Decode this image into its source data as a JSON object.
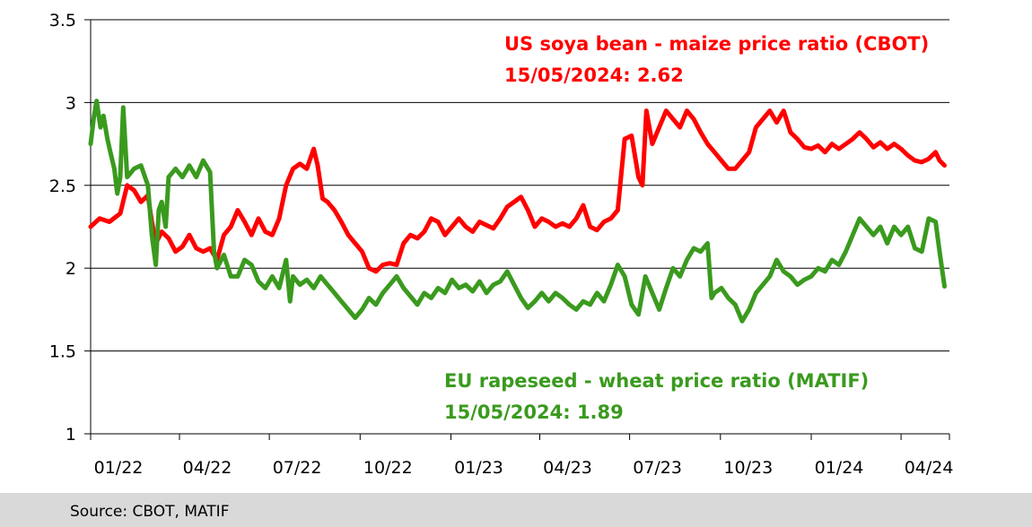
{
  "chart_data": {
    "type": "line",
    "title": "",
    "xlabel": "",
    "ylabel": "",
    "ylim": [
      1,
      3.5
    ],
    "y_ticks": [
      "1",
      "1.5",
      "2",
      "2.5",
      "3",
      "3.5"
    ],
    "x_range": [
      "2022-01-01",
      "2024-05-20"
    ],
    "x_tick_labels": [
      {
        "date": "2022-01-01",
        "label": "01/22"
      },
      {
        "date": "2022-04-01",
        "label": "04/22"
      },
      {
        "date": "2022-07-01",
        "label": "07/22"
      },
      {
        "date": "2022-10-01",
        "label": "10/22"
      },
      {
        "date": "2023-01-01",
        "label": "01/23"
      },
      {
        "date": "2023-04-01",
        "label": "04/23"
      },
      {
        "date": "2023-07-01",
        "label": "07/23"
      },
      {
        "date": "2023-10-01",
        "label": "10/23"
      },
      {
        "date": "2024-01-01",
        "label": "01/24"
      },
      {
        "date": "2024-04-01",
        "label": "04/24"
      }
    ],
    "grid": "horizontal",
    "annotations": [
      {
        "series": "US soya bean - maize price ratio (CBOT)",
        "line1": "US soya bean - maize price ratio (CBOT)",
        "line2": "15/05/2024: 2.62"
      },
      {
        "series": "EU rapeseed - wheat price ratio (MATIF)",
        "line1": "EU rapeseed - wheat price ratio (MATIF)",
        "line2": "15/05/2024: 1.89"
      }
    ],
    "series": [
      {
        "name": "US soya bean - maize price ratio (CBOT)",
        "color": "#ff0000",
        "points": [
          [
            "2022-01-01",
            2.25
          ],
          [
            "2022-01-10",
            2.3
          ],
          [
            "2022-01-20",
            2.28
          ],
          [
            "2022-01-31",
            2.33
          ],
          [
            "2022-02-07",
            2.5
          ],
          [
            "2022-02-14",
            2.47
          ],
          [
            "2022-02-21",
            2.4
          ],
          [
            "2022-02-28",
            2.44
          ],
          [
            "2022-03-04",
            2.28
          ],
          [
            "2022-03-08",
            2.15
          ],
          [
            "2022-03-14",
            2.22
          ],
          [
            "2022-03-21",
            2.18
          ],
          [
            "2022-03-28",
            2.1
          ],
          [
            "2022-04-04",
            2.13
          ],
          [
            "2022-04-11",
            2.2
          ],
          [
            "2022-04-18",
            2.12
          ],
          [
            "2022-04-25",
            2.1
          ],
          [
            "2022-05-02",
            2.12
          ],
          [
            "2022-05-09",
            2.05
          ],
          [
            "2022-05-16",
            2.2
          ],
          [
            "2022-05-23",
            2.25
          ],
          [
            "2022-05-30",
            2.35
          ],
          [
            "2022-06-06",
            2.28
          ],
          [
            "2022-06-13",
            2.2
          ],
          [
            "2022-06-20",
            2.3
          ],
          [
            "2022-06-27",
            2.22
          ],
          [
            "2022-07-04",
            2.2
          ],
          [
            "2022-07-11",
            2.3
          ],
          [
            "2022-07-18",
            2.5
          ],
          [
            "2022-07-25",
            2.6
          ],
          [
            "2022-08-01",
            2.63
          ],
          [
            "2022-08-08",
            2.6
          ],
          [
            "2022-08-15",
            2.72
          ],
          [
            "2022-08-19",
            2.62
          ],
          [
            "2022-08-24",
            2.42
          ],
          [
            "2022-08-29",
            2.4
          ],
          [
            "2022-09-05",
            2.35
          ],
          [
            "2022-09-12",
            2.28
          ],
          [
            "2022-09-19",
            2.2
          ],
          [
            "2022-09-26",
            2.15
          ],
          [
            "2022-10-03",
            2.1
          ],
          [
            "2022-10-10",
            2.0
          ],
          [
            "2022-10-17",
            1.98
          ],
          [
            "2022-10-24",
            2.02
          ],
          [
            "2022-10-31",
            2.03
          ],
          [
            "2022-11-07",
            2.02
          ],
          [
            "2022-11-14",
            2.15
          ],
          [
            "2022-11-21",
            2.2
          ],
          [
            "2022-11-28",
            2.18
          ],
          [
            "2022-12-05",
            2.22
          ],
          [
            "2022-12-12",
            2.3
          ],
          [
            "2022-12-19",
            2.28
          ],
          [
            "2022-12-26",
            2.2
          ],
          [
            "2023-01-02",
            2.25
          ],
          [
            "2023-01-09",
            2.3
          ],
          [
            "2023-01-16",
            2.25
          ],
          [
            "2023-01-23",
            2.22
          ],
          [
            "2023-01-30",
            2.28
          ],
          [
            "2023-02-06",
            2.26
          ],
          [
            "2023-02-13",
            2.24
          ],
          [
            "2023-02-20",
            2.3
          ],
          [
            "2023-02-27",
            2.37
          ],
          [
            "2023-03-06",
            2.4
          ],
          [
            "2023-03-13",
            2.43
          ],
          [
            "2023-03-20",
            2.35
          ],
          [
            "2023-03-27",
            2.25
          ],
          [
            "2023-04-03",
            2.3
          ],
          [
            "2023-04-10",
            2.28
          ],
          [
            "2023-04-17",
            2.25
          ],
          [
            "2023-04-24",
            2.27
          ],
          [
            "2023-05-01",
            2.25
          ],
          [
            "2023-05-08",
            2.3
          ],
          [
            "2023-05-15",
            2.38
          ],
          [
            "2023-05-22",
            2.25
          ],
          [
            "2023-05-29",
            2.23
          ],
          [
            "2023-06-05",
            2.28
          ],
          [
            "2023-06-12",
            2.3
          ],
          [
            "2023-06-19",
            2.35
          ],
          [
            "2023-06-26",
            2.78
          ],
          [
            "2023-07-03",
            2.8
          ],
          [
            "2023-07-10",
            2.55
          ],
          [
            "2023-07-14",
            2.5
          ],
          [
            "2023-07-18",
            2.95
          ],
          [
            "2023-07-24",
            2.75
          ],
          [
            "2023-07-31",
            2.85
          ],
          [
            "2023-08-07",
            2.95
          ],
          [
            "2023-08-14",
            2.9
          ],
          [
            "2023-08-21",
            2.85
          ],
          [
            "2023-08-28",
            2.95
          ],
          [
            "2023-09-04",
            2.9
          ],
          [
            "2023-09-11",
            2.82
          ],
          [
            "2023-09-18",
            2.75
          ],
          [
            "2023-09-25",
            2.7
          ],
          [
            "2023-10-02",
            2.65
          ],
          [
            "2023-10-09",
            2.6
          ],
          [
            "2023-10-16",
            2.6
          ],
          [
            "2023-10-23",
            2.65
          ],
          [
            "2023-10-30",
            2.7
          ],
          [
            "2023-11-06",
            2.85
          ],
          [
            "2023-11-13",
            2.9
          ],
          [
            "2023-11-20",
            2.95
          ],
          [
            "2023-11-27",
            2.88
          ],
          [
            "2023-12-04",
            2.95
          ],
          [
            "2023-12-11",
            2.82
          ],
          [
            "2023-12-18",
            2.78
          ],
          [
            "2023-12-25",
            2.73
          ],
          [
            "2024-01-01",
            2.72
          ],
          [
            "2024-01-08",
            2.74
          ],
          [
            "2024-01-15",
            2.7
          ],
          [
            "2024-01-22",
            2.75
          ],
          [
            "2024-01-29",
            2.72
          ],
          [
            "2024-02-05",
            2.75
          ],
          [
            "2024-02-12",
            2.78
          ],
          [
            "2024-02-19",
            2.82
          ],
          [
            "2024-02-26",
            2.78
          ],
          [
            "2024-03-04",
            2.73
          ],
          [
            "2024-03-11",
            2.76
          ],
          [
            "2024-03-18",
            2.72
          ],
          [
            "2024-03-25",
            2.75
          ],
          [
            "2024-04-01",
            2.72
          ],
          [
            "2024-04-08",
            2.68
          ],
          [
            "2024-04-15",
            2.65
          ],
          [
            "2024-04-22",
            2.64
          ],
          [
            "2024-04-29",
            2.66
          ],
          [
            "2024-05-06",
            2.7
          ],
          [
            "2024-05-10",
            2.65
          ],
          [
            "2024-05-15",
            2.62
          ]
        ]
      },
      {
        "name": "EU rapeseed - wheat price ratio (MATIF)",
        "color": "#3a9a1e",
        "points": [
          [
            "2022-01-01",
            2.75
          ],
          [
            "2022-01-04",
            2.9
          ],
          [
            "2022-01-07",
            3.01
          ],
          [
            "2022-01-11",
            2.85
          ],
          [
            "2022-01-14",
            2.92
          ],
          [
            "2022-01-18",
            2.78
          ],
          [
            "2022-01-21",
            2.7
          ],
          [
            "2022-01-25",
            2.6
          ],
          [
            "2022-01-28",
            2.45
          ],
          [
            "2022-01-31",
            2.55
          ],
          [
            "2022-02-03",
            2.97
          ],
          [
            "2022-02-07",
            2.55
          ],
          [
            "2022-02-14",
            2.6
          ],
          [
            "2022-02-21",
            2.62
          ],
          [
            "2022-02-28",
            2.5
          ],
          [
            "2022-03-04",
            2.2
          ],
          [
            "2022-03-08",
            2.02
          ],
          [
            "2022-03-11",
            2.35
          ],
          [
            "2022-03-14",
            2.4
          ],
          [
            "2022-03-18",
            2.25
          ],
          [
            "2022-03-21",
            2.55
          ],
          [
            "2022-03-28",
            2.6
          ],
          [
            "2022-04-04",
            2.55
          ],
          [
            "2022-04-11",
            2.62
          ],
          [
            "2022-04-18",
            2.55
          ],
          [
            "2022-04-25",
            2.65
          ],
          [
            "2022-05-02",
            2.58
          ],
          [
            "2022-05-06",
            2.1
          ],
          [
            "2022-05-09",
            2.0
          ],
          [
            "2022-05-16",
            2.08
          ],
          [
            "2022-05-23",
            1.95
          ],
          [
            "2022-05-30",
            1.95
          ],
          [
            "2022-06-06",
            2.05
          ],
          [
            "2022-06-13",
            2.02
          ],
          [
            "2022-06-20",
            1.92
          ],
          [
            "2022-06-27",
            1.88
          ],
          [
            "2022-07-04",
            1.95
          ],
          [
            "2022-07-11",
            1.88
          ],
          [
            "2022-07-18",
            2.05
          ],
          [
            "2022-07-22",
            1.8
          ],
          [
            "2022-07-25",
            1.95
          ],
          [
            "2022-08-01",
            1.9
          ],
          [
            "2022-08-08",
            1.93
          ],
          [
            "2022-08-15",
            1.88
          ],
          [
            "2022-08-22",
            1.95
          ],
          [
            "2022-08-29",
            1.9
          ],
          [
            "2022-09-05",
            1.85
          ],
          [
            "2022-09-12",
            1.8
          ],
          [
            "2022-09-19",
            1.75
          ],
          [
            "2022-09-26",
            1.7
          ],
          [
            "2022-10-03",
            1.75
          ],
          [
            "2022-10-10",
            1.82
          ],
          [
            "2022-10-17",
            1.78
          ],
          [
            "2022-10-24",
            1.85
          ],
          [
            "2022-10-31",
            1.9
          ],
          [
            "2022-11-07",
            1.95
          ],
          [
            "2022-11-14",
            1.88
          ],
          [
            "2022-11-21",
            1.83
          ],
          [
            "2022-11-28",
            1.78
          ],
          [
            "2022-12-05",
            1.85
          ],
          [
            "2022-12-12",
            1.82
          ],
          [
            "2022-12-19",
            1.88
          ],
          [
            "2022-12-26",
            1.85
          ],
          [
            "2023-01-02",
            1.93
          ],
          [
            "2023-01-09",
            1.88
          ],
          [
            "2023-01-16",
            1.9
          ],
          [
            "2023-01-23",
            1.86
          ],
          [
            "2023-01-30",
            1.92
          ],
          [
            "2023-02-06",
            1.85
          ],
          [
            "2023-02-13",
            1.9
          ],
          [
            "2023-02-20",
            1.92
          ],
          [
            "2023-02-27",
            1.98
          ],
          [
            "2023-03-06",
            1.9
          ],
          [
            "2023-03-13",
            1.82
          ],
          [
            "2023-03-20",
            1.76
          ],
          [
            "2023-03-27",
            1.8
          ],
          [
            "2023-04-03",
            1.85
          ],
          [
            "2023-04-10",
            1.8
          ],
          [
            "2023-04-17",
            1.85
          ],
          [
            "2023-04-24",
            1.82
          ],
          [
            "2023-05-01",
            1.78
          ],
          [
            "2023-05-08",
            1.75
          ],
          [
            "2023-05-15",
            1.8
          ],
          [
            "2023-05-22",
            1.78
          ],
          [
            "2023-05-29",
            1.85
          ],
          [
            "2023-06-05",
            1.8
          ],
          [
            "2023-06-12",
            1.9
          ],
          [
            "2023-06-19",
            2.02
          ],
          [
            "2023-06-26",
            1.95
          ],
          [
            "2023-07-03",
            1.78
          ],
          [
            "2023-07-10",
            1.72
          ],
          [
            "2023-07-17",
            1.95
          ],
          [
            "2023-07-24",
            1.85
          ],
          [
            "2023-07-31",
            1.75
          ],
          [
            "2023-08-07",
            1.88
          ],
          [
            "2023-08-14",
            2.0
          ],
          [
            "2023-08-21",
            1.95
          ],
          [
            "2023-08-28",
            2.05
          ],
          [
            "2023-09-04",
            2.12
          ],
          [
            "2023-09-11",
            2.1
          ],
          [
            "2023-09-18",
            2.15
          ],
          [
            "2023-09-22",
            1.82
          ],
          [
            "2023-09-25",
            1.85
          ],
          [
            "2023-10-02",
            1.88
          ],
          [
            "2023-10-09",
            1.82
          ],
          [
            "2023-10-16",
            1.78
          ],
          [
            "2023-10-23",
            1.68
          ],
          [
            "2023-10-30",
            1.75
          ],
          [
            "2023-11-06",
            1.85
          ],
          [
            "2023-11-13",
            1.9
          ],
          [
            "2023-11-20",
            1.95
          ],
          [
            "2023-11-27",
            2.05
          ],
          [
            "2023-12-04",
            1.98
          ],
          [
            "2023-12-11",
            1.95
          ],
          [
            "2023-12-18",
            1.9
          ],
          [
            "2023-12-25",
            1.93
          ],
          [
            "2024-01-01",
            1.95
          ],
          [
            "2024-01-08",
            2.0
          ],
          [
            "2024-01-15",
            1.98
          ],
          [
            "2024-01-22",
            2.05
          ],
          [
            "2024-01-29",
            2.02
          ],
          [
            "2024-02-05",
            2.1
          ],
          [
            "2024-02-12",
            2.2
          ],
          [
            "2024-02-19",
            2.3
          ],
          [
            "2024-02-26",
            2.25
          ],
          [
            "2024-03-04",
            2.2
          ],
          [
            "2024-03-11",
            2.25
          ],
          [
            "2024-03-18",
            2.15
          ],
          [
            "2024-03-25",
            2.25
          ],
          [
            "2024-04-01",
            2.2
          ],
          [
            "2024-04-08",
            2.25
          ],
          [
            "2024-04-15",
            2.12
          ],
          [
            "2024-04-22",
            2.1
          ],
          [
            "2024-04-29",
            2.3
          ],
          [
            "2024-05-06",
            2.28
          ],
          [
            "2024-05-10",
            2.1
          ],
          [
            "2024-05-15",
            1.89
          ]
        ]
      }
    ]
  },
  "source": {
    "text": "Source: CBOT, MATIF"
  }
}
